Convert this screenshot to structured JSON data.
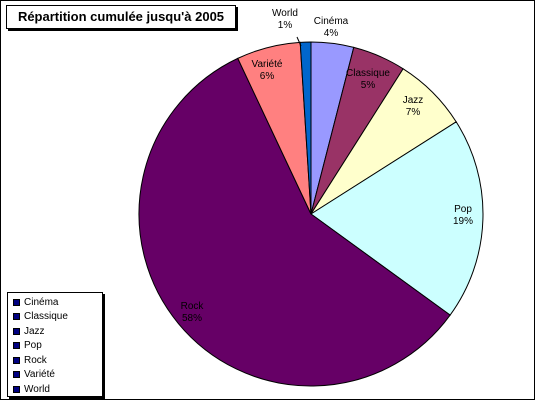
{
  "chart_data": {
    "type": "pie",
    "title": "Répartition cumulée jusqu'à 2005",
    "categories": [
      "Cinéma",
      "Classique",
      "Jazz",
      "Pop",
      "Rock",
      "Variété",
      "World"
    ],
    "values": [
      4,
      5,
      7,
      19,
      58,
      6,
      1
    ],
    "data_labels": [
      "4%",
      "5%",
      "7%",
      "19%",
      "58%",
      "6%",
      "1%"
    ],
    "colors": [
      "#9999ff",
      "#993366",
      "#ffffcc",
      "#ccffff",
      "#660066",
      "#ff8080",
      "#0066cc"
    ],
    "legend": {
      "placement": "bottom-left",
      "entries": [
        "Cinéma",
        "Classique",
        "Jazz",
        "Pop",
        "Rock",
        "Variété",
        "World"
      ],
      "marker_color": "#000080"
    }
  }
}
